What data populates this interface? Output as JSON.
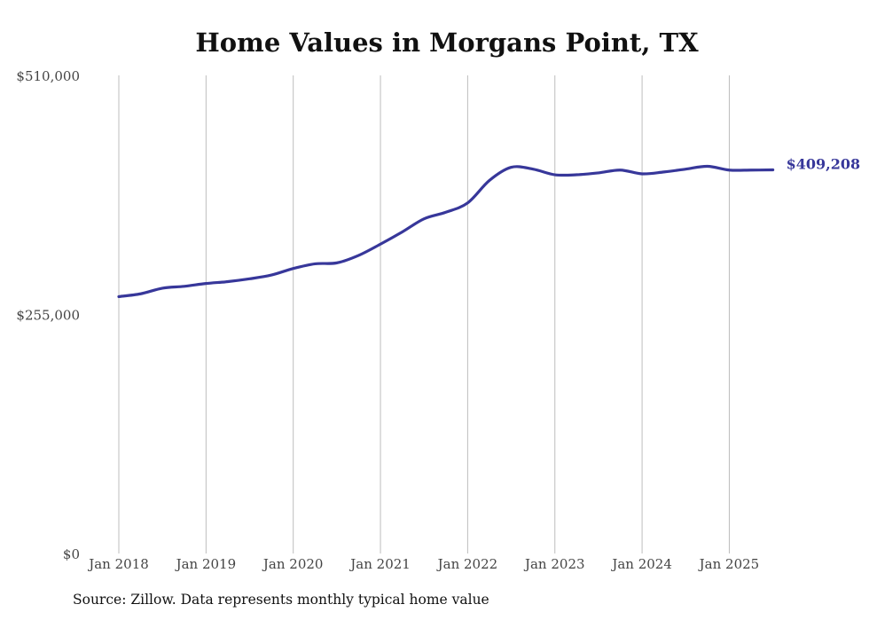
{
  "chart_data": {
    "type": "line",
    "title": "Home Values in Morgans Point, TX",
    "xlabel": "",
    "ylabel": "",
    "ylim": [
      0,
      510000
    ],
    "y_ticks": [
      "$0",
      "$255,000",
      "$510,000"
    ],
    "y_tick_values": [
      0,
      255000,
      510000
    ],
    "x_ticks": [
      "Jan 2018",
      "Jan 2019",
      "Jan 2020",
      "Jan 2021",
      "Jan 2022",
      "Jan 2023",
      "Jan 2024",
      "Jan 2025"
    ],
    "x_tick_years": [
      2018,
      2019,
      2020,
      2021,
      2022,
      2023,
      2024,
      2025
    ],
    "grid": "vertical",
    "line_color": "#37379a",
    "series": [
      {
        "name": "",
        "end_label": "$409,208",
        "points": [
          {
            "date": "2018-01",
            "value": 274000
          },
          {
            "date": "2018-04",
            "value": 277000
          },
          {
            "date": "2018-07",
            "value": 283000
          },
          {
            "date": "2018-10",
            "value": 285000
          },
          {
            "date": "2019-01",
            "value": 288000
          },
          {
            "date": "2019-04",
            "value": 290000
          },
          {
            "date": "2019-07",
            "value": 293000
          },
          {
            "date": "2019-10",
            "value": 297000
          },
          {
            "date": "2020-01",
            "value": 304000
          },
          {
            "date": "2020-04",
            "value": 309000
          },
          {
            "date": "2020-07",
            "value": 310000
          },
          {
            "date": "2020-10",
            "value": 318000
          },
          {
            "date": "2021-01",
            "value": 330000
          },
          {
            "date": "2021-04",
            "value": 343000
          },
          {
            "date": "2021-07",
            "value": 357000
          },
          {
            "date": "2021-10",
            "value": 364000
          },
          {
            "date": "2022-01",
            "value": 374000
          },
          {
            "date": "2022-04",
            "value": 398000
          },
          {
            "date": "2022-07",
            "value": 412000
          },
          {
            "date": "2022-10",
            "value": 410000
          },
          {
            "date": "2023-01",
            "value": 404000
          },
          {
            "date": "2023-04",
            "value": 404000
          },
          {
            "date": "2023-07",
            "value": 406000
          },
          {
            "date": "2023-10",
            "value": 409000
          },
          {
            "date": "2024-01",
            "value": 405000
          },
          {
            "date": "2024-04",
            "value": 407000
          },
          {
            "date": "2024-07",
            "value": 410000
          },
          {
            "date": "2024-10",
            "value": 413000
          },
          {
            "date": "2025-01",
            "value": 409000
          },
          {
            "date": "2025-04",
            "value": 409000
          },
          {
            "date": "2025-07",
            "value": 409208
          }
        ]
      }
    ]
  },
  "source": "Source: Zillow. Data represents monthly typical home value"
}
